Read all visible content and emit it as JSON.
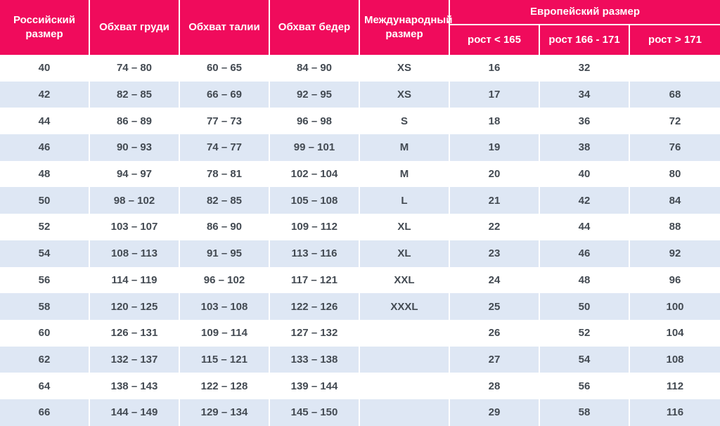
{
  "colors": {
    "header_background": "#F00B5C",
    "header_text": "#FFFFFF",
    "row_stripe": "#DEE7F4",
    "row_plain": "#FFFFFF",
    "body_text": "#434A52"
  },
  "table": {
    "header": {
      "russian_size": "Российский размер",
      "chest": "Обхват груди",
      "waist": "Обхват талии",
      "hips": "Обхват бедер",
      "international_size": "Международный размер",
      "european_size": "Европейский размер",
      "height_lt_165": "рост < 165",
      "height_166_171": "рост 166 - 171",
      "height_gt_171": "рост > 171"
    },
    "rows": [
      [
        "40",
        "74 – 80",
        "60 – 65",
        "84 – 90",
        "XS",
        "16",
        "32",
        ""
      ],
      [
        "42",
        "82 – 85",
        "66 – 69",
        "92 – 95",
        "XS",
        "17",
        "34",
        "68"
      ],
      [
        "44",
        "86 – 89",
        "77 – 73",
        "96 – 98",
        "S",
        "18",
        "36",
        "72"
      ],
      [
        "46",
        "90 – 93",
        "74 – 77",
        "99 – 101",
        "M",
        "19",
        "38",
        "76"
      ],
      [
        "48",
        "94 – 97",
        "78 – 81",
        "102 – 104",
        "M",
        "20",
        "40",
        "80"
      ],
      [
        "50",
        "98 – 102",
        "82 – 85",
        "105 – 108",
        "L",
        "21",
        "42",
        "84"
      ],
      [
        "52",
        "103 – 107",
        "86 – 90",
        "109 – 112",
        "XL",
        "22",
        "44",
        "88"
      ],
      [
        "54",
        "108 – 113",
        "91 – 95",
        "113 – 116",
        "XL",
        "23",
        "46",
        "92"
      ],
      [
        "56",
        "114 – 119",
        "96 – 102",
        "117 – 121",
        "XXL",
        "24",
        "48",
        "96"
      ],
      [
        "58",
        "120 – 125",
        "103 – 108",
        "122 – 126",
        "XXXL",
        "25",
        "50",
        "100"
      ],
      [
        "60",
        "126 – 131",
        "109 – 114",
        "127 – 132",
        "",
        "26",
        "52",
        "104"
      ],
      [
        "62",
        "132 – 137",
        "115 – 121",
        "133 – 138",
        "",
        "27",
        "54",
        "108"
      ],
      [
        "64",
        "138 – 143",
        "122 – 128",
        "139 – 144",
        "",
        "28",
        "56",
        "112"
      ],
      [
        "66",
        "144 – 149",
        "129 – 134",
        "145 – 150",
        "",
        "29",
        "58",
        "116"
      ]
    ]
  }
}
